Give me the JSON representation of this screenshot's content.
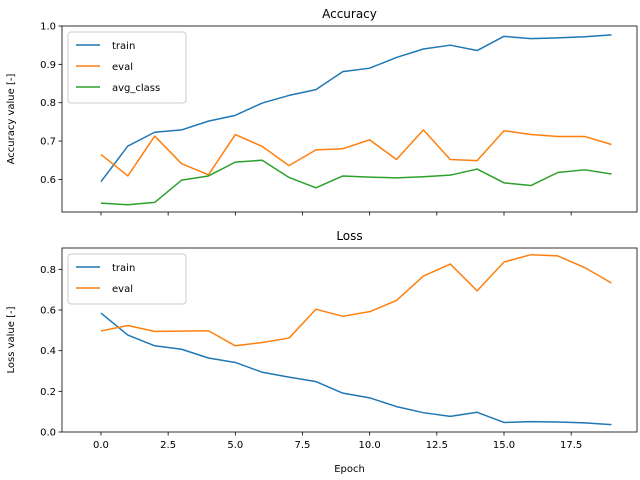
{
  "chart_data": [
    {
      "type": "line",
      "title": "Accuracy",
      "xlabel": "",
      "ylabel": "Accuracy value [-]",
      "xlim": [
        -1.45,
        19.95
      ],
      "ylim": [
        0.515,
        1.0
      ],
      "xticks": [
        0.0,
        2.5,
        5.0,
        7.5,
        10.0,
        12.5,
        15.0,
        17.5
      ],
      "xtick_labels": [],
      "yticks": [
        0.6,
        0.7,
        0.8,
        0.9,
        1.0
      ],
      "ytick_labels": [
        "0.6",
        "0.7",
        "0.8",
        "0.9",
        "1.0"
      ],
      "grid": false,
      "legend": "upper left",
      "x": [
        0,
        1,
        2,
        3,
        4,
        5,
        6,
        7,
        8,
        9,
        10,
        11,
        12,
        13,
        14,
        15,
        16,
        17,
        18,
        19
      ],
      "series": [
        {
          "name": "train",
          "color": "#1f77b4",
          "values": [
            0.594,
            0.687,
            0.723,
            0.729,
            0.752,
            0.767,
            0.799,
            0.819,
            0.834,
            0.881,
            0.89,
            0.918,
            0.94,
            0.95,
            0.936,
            0.973,
            0.967,
            0.969,
            0.972,
            0.977
          ]
        },
        {
          "name": "eval",
          "color": "#ff7f0e",
          "values": [
            0.665,
            0.609,
            0.713,
            0.641,
            0.612,
            0.717,
            0.686,
            0.636,
            0.677,
            0.68,
            0.703,
            0.652,
            0.729,
            0.652,
            0.649,
            0.727,
            0.717,
            0.712,
            0.712,
            0.691
          ]
        },
        {
          "name": "avg_class",
          "color": "#2ca02c",
          "values": [
            0.538,
            0.534,
            0.54,
            0.598,
            0.609,
            0.645,
            0.65,
            0.605,
            0.578,
            0.609,
            0.606,
            0.604,
            0.607,
            0.611,
            0.627,
            0.591,
            0.584,
            0.618,
            0.625,
            0.614
          ]
        }
      ]
    },
    {
      "type": "line",
      "title": "Loss",
      "xlabel": "Epoch",
      "ylabel": "Loss value [-]",
      "xlim": [
        -1.45,
        19.95
      ],
      "ylim": [
        0.0,
        0.905
      ],
      "xticks": [
        0.0,
        2.5,
        5.0,
        7.5,
        10.0,
        12.5,
        15.0,
        17.5
      ],
      "xtick_labels": [
        "0.0",
        "2.5",
        "5.0",
        "7.5",
        "10.0",
        "12.5",
        "15.0",
        "17.5"
      ],
      "yticks": [
        0.0,
        0.2,
        0.4,
        0.6,
        0.8
      ],
      "ytick_labels": [
        "0.0",
        "0.2",
        "0.4",
        "0.6",
        "0.8"
      ],
      "grid": false,
      "legend": "upper left",
      "x": [
        0,
        1,
        2,
        3,
        4,
        5,
        6,
        7,
        8,
        9,
        10,
        11,
        12,
        13,
        14,
        15,
        16,
        17,
        18,
        19
      ],
      "series": [
        {
          "name": "train",
          "color": "#1f77b4",
          "values": [
            0.585,
            0.477,
            0.424,
            0.407,
            0.364,
            0.342,
            0.294,
            0.27,
            0.248,
            0.191,
            0.168,
            0.125,
            0.095,
            0.077,
            0.097,
            0.047,
            0.051,
            0.049,
            0.045,
            0.036
          ]
        },
        {
          "name": "eval",
          "color": "#ff7f0e",
          "values": [
            0.497,
            0.524,
            0.495,
            0.496,
            0.498,
            0.424,
            0.44,
            0.462,
            0.604,
            0.569,
            0.592,
            0.647,
            0.767,
            0.826,
            0.694,
            0.836,
            0.872,
            0.866,
            0.809,
            0.733
          ]
        }
      ]
    }
  ]
}
